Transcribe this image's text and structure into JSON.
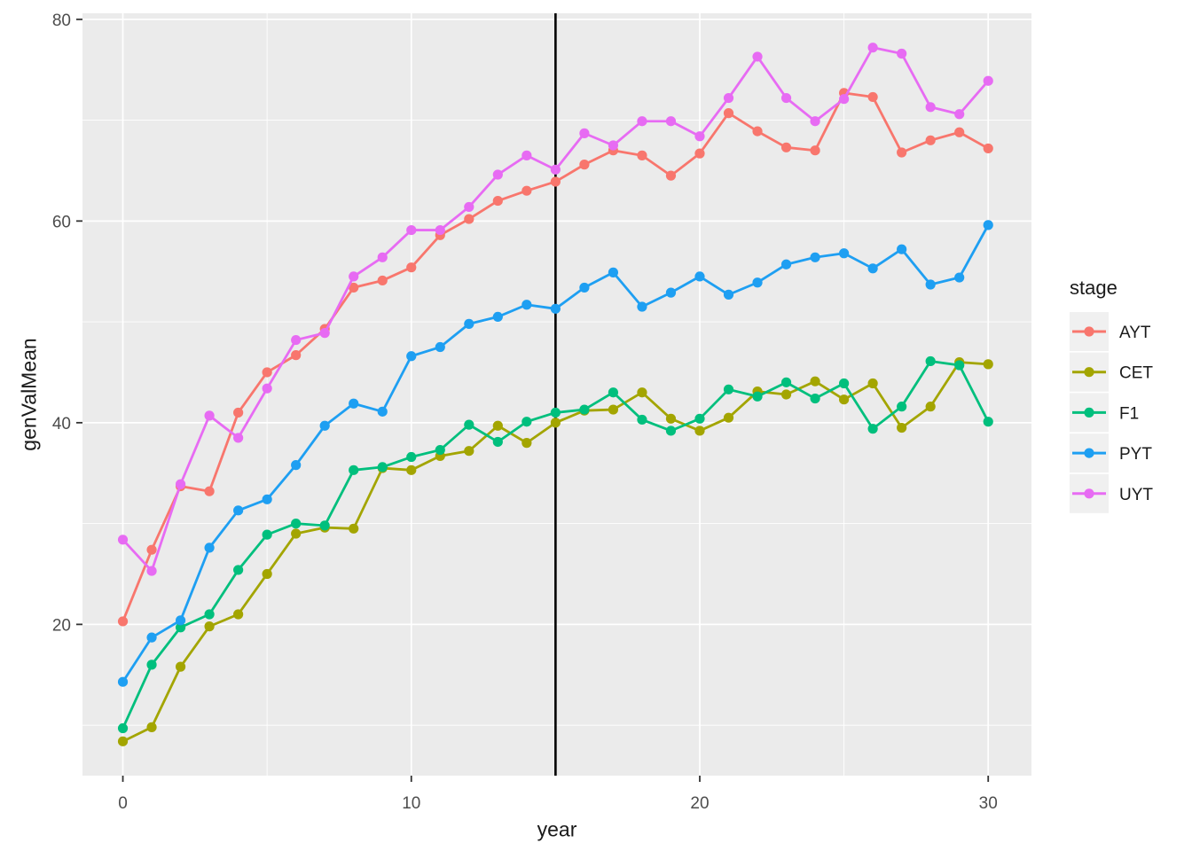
{
  "figure": {
    "background": "#FFFFFF"
  },
  "style": {
    "panel_bg": "#EBEBEB",
    "grid_color": "#FFFFFF",
    "tick_mark_color": "#333333",
    "tick_label_color": "#4D4D4D",
    "text_color": "#1A1A1A",
    "legend_key_bg": "#F0F0F0",
    "vline_color": "#000000"
  },
  "chart_data": {
    "type": "line",
    "title": "",
    "xlabel": "year",
    "ylabel": "genValMean",
    "legend_title": "stage",
    "legend_position": "right",
    "grid": true,
    "xlim": [
      -1.4,
      31.5
    ],
    "ylim": [
      5.0,
      80.6
    ],
    "x_ticks": [
      0,
      10,
      20,
      30
    ],
    "x_minor_ticks": [
      5,
      15,
      25
    ],
    "y_ticks": [
      20,
      40,
      60,
      80
    ],
    "y_minor_ticks": [
      10,
      30,
      50,
      70
    ],
    "vline_x": 15,
    "x": [
      0,
      1,
      2,
      3,
      4,
      5,
      6,
      7,
      8,
      9,
      10,
      11,
      12,
      13,
      14,
      15,
      16,
      17,
      18,
      19,
      20,
      21,
      22,
      23,
      24,
      25,
      26,
      27,
      28,
      29,
      30
    ],
    "series": [
      {
        "name": "AYT",
        "color": "#F8766D",
        "values": [
          20.3,
          27.4,
          33.7,
          33.2,
          41.0,
          45.0,
          46.7,
          49.3,
          53.4,
          54.1,
          55.4,
          58.6,
          60.2,
          62.0,
          63.0,
          63.9,
          65.6,
          67.0,
          66.5,
          64.5,
          66.7,
          70.7,
          68.9,
          67.3,
          67.0,
          72.7,
          72.3,
          66.8,
          68.0,
          68.8,
          67.2
        ]
      },
      {
        "name": "CET",
        "color": "#A3A500",
        "values": [
          8.4,
          9.8,
          15.8,
          19.8,
          21.0,
          25.0,
          29.0,
          29.6,
          29.5,
          35.5,
          35.3,
          36.7,
          37.2,
          39.7,
          38.0,
          40.0,
          41.2,
          41.3,
          43.0,
          40.4,
          39.2,
          40.5,
          43.1,
          42.8,
          44.1,
          42.3,
          43.9,
          39.5,
          41.6,
          46.0,
          45.8
        ]
      },
      {
        "name": "F1",
        "color": "#00BF7D",
        "values": [
          9.7,
          16.0,
          19.7,
          21.0,
          25.4,
          28.9,
          30.0,
          29.8,
          35.3,
          35.6,
          36.6,
          37.3,
          39.8,
          38.1,
          40.1,
          41.0,
          41.3,
          43.0,
          40.3,
          39.2,
          40.4,
          43.3,
          42.6,
          44.0,
          42.4,
          43.9,
          39.4,
          41.6,
          46.1,
          45.7,
          40.1
        ]
      },
      {
        "name": "PYT",
        "color": "#1E9FF2",
        "values": [
          14.3,
          18.7,
          20.4,
          27.6,
          31.3,
          32.4,
          35.8,
          39.7,
          41.9,
          41.1,
          46.6,
          47.5,
          49.8,
          50.5,
          51.7,
          51.3,
          53.4,
          54.9,
          51.5,
          52.9,
          54.5,
          52.7,
          53.9,
          55.7,
          56.4,
          56.8,
          55.3,
          57.2,
          53.7,
          54.4,
          59.6
        ]
      },
      {
        "name": "UYT",
        "color": "#E76BF3",
        "values": [
          28.4,
          25.3,
          33.9,
          40.7,
          38.5,
          43.4,
          48.2,
          48.9,
          54.5,
          56.4,
          59.1,
          59.1,
          61.4,
          64.6,
          66.5,
          65.1,
          68.7,
          67.5,
          69.9,
          69.9,
          68.4,
          72.2,
          76.3,
          72.2,
          69.9,
          72.1,
          77.2,
          76.6,
          71.3,
          70.6,
          73.9
        ]
      }
    ]
  }
}
